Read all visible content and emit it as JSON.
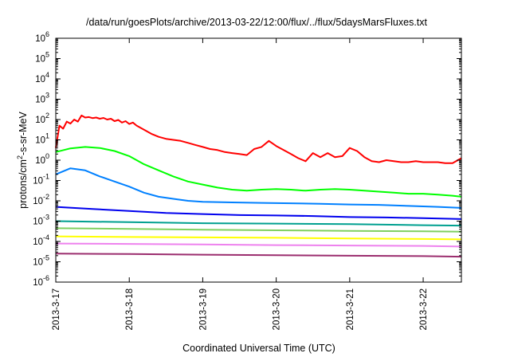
{
  "chart_data": {
    "type": "line",
    "title": "/data/run/goesPlots/archive/2013-03-22/12:00/flux/../flux/5daysMarsFluxes.txt",
    "xlabel": "Coordinated Universal Time (UTC)",
    "ylabel": "protons/cm2-s-sr-MeV",
    "ylabel_parts": {
      "pre": "protons/cm",
      "sup": "2",
      "post": "-s-sr-MeV"
    },
    "yscale": "log",
    "ylim_exponent": [
      -6,
      6
    ],
    "yticks": [
      {
        "base": "10",
        "exp": "6"
      },
      {
        "base": "10",
        "exp": "5"
      },
      {
        "base": "10",
        "exp": "4"
      },
      {
        "base": "10",
        "exp": "3"
      },
      {
        "base": "10",
        "exp": "2"
      },
      {
        "base": "10",
        "exp": "1"
      },
      {
        "base": "10",
        "exp": "0"
      },
      {
        "base": "10",
        "exp": "-1"
      },
      {
        "base": "10",
        "exp": "-2"
      },
      {
        "base": "10",
        "exp": "-3"
      },
      {
        "base": "10",
        "exp": "-4"
      },
      {
        "base": "10",
        "exp": "-5"
      },
      {
        "base": "10",
        "exp": "-6"
      }
    ],
    "xlim_days": [
      0,
      5.52
    ],
    "xticks": [
      "2013-3-17",
      "2013-3-18",
      "2013-3-19",
      "2013-3-20",
      "2013-3-21",
      "2013-3-22"
    ],
    "grid": false,
    "series": [
      {
        "color": "#ff0000",
        "points": [
          [
            0.0,
            0.6
          ],
          [
            0.05,
            1.7
          ],
          [
            0.1,
            1.55
          ],
          [
            0.15,
            1.9
          ],
          [
            0.2,
            1.8
          ],
          [
            0.25,
            2.0
          ],
          [
            0.3,
            1.9
          ],
          [
            0.35,
            2.2
          ],
          [
            0.4,
            2.1
          ],
          [
            0.45,
            2.12
          ],
          [
            0.5,
            2.07
          ],
          [
            0.55,
            2.1
          ],
          [
            0.6,
            2.04
          ],
          [
            0.65,
            2.08
          ],
          [
            0.7,
            2.0
          ],
          [
            0.75,
            2.04
          ],
          [
            0.8,
            1.92
          ],
          [
            0.85,
            1.98
          ],
          [
            0.9,
            1.85
          ],
          [
            0.95,
            1.92
          ],
          [
            1.0,
            1.78
          ],
          [
            1.05,
            1.85
          ],
          [
            1.1,
            1.7
          ],
          [
            1.2,
            1.5
          ],
          [
            1.3,
            1.3
          ],
          [
            1.4,
            1.15
          ],
          [
            1.5,
            1.05
          ],
          [
            1.6,
            1.0
          ],
          [
            1.7,
            0.95
          ],
          [
            1.8,
            0.85
          ],
          [
            1.9,
            0.75
          ],
          [
            2.0,
            0.65
          ],
          [
            2.1,
            0.55
          ],
          [
            2.2,
            0.5
          ],
          [
            2.3,
            0.4
          ],
          [
            2.4,
            0.35
          ],
          [
            2.5,
            0.3
          ],
          [
            2.6,
            0.25
          ],
          [
            2.7,
            0.55
          ],
          [
            2.8,
            0.65
          ],
          [
            2.9,
            0.95
          ],
          [
            3.0,
            0.7
          ],
          [
            3.1,
            0.5
          ],
          [
            3.2,
            0.3
          ],
          [
            3.3,
            0.1
          ],
          [
            3.4,
            -0.05
          ],
          [
            3.5,
            0.35
          ],
          [
            3.6,
            0.15
          ],
          [
            3.7,
            0.35
          ],
          [
            3.8,
            0.15
          ],
          [
            3.9,
            0.2
          ],
          [
            4.0,
            0.6
          ],
          [
            4.1,
            0.45
          ],
          [
            4.2,
            0.15
          ],
          [
            4.3,
            -0.05
          ],
          [
            4.4,
            -0.1
          ],
          [
            4.5,
            0.0
          ],
          [
            4.6,
            -0.05
          ],
          [
            4.7,
            -0.1
          ],
          [
            4.8,
            -0.1
          ],
          [
            4.9,
            -0.05
          ],
          [
            5.0,
            -0.1
          ],
          [
            5.1,
            -0.1
          ],
          [
            5.2,
            -0.1
          ],
          [
            5.3,
            -0.15
          ],
          [
            5.4,
            -0.15
          ],
          [
            5.52,
            0.1
          ]
        ]
      },
      {
        "color": "#00ff00",
        "points": [
          [
            0.0,
            0.4
          ],
          [
            0.2,
            0.58
          ],
          [
            0.4,
            0.65
          ],
          [
            0.6,
            0.6
          ],
          [
            0.8,
            0.45
          ],
          [
            1.0,
            0.2
          ],
          [
            1.2,
            -0.2
          ],
          [
            1.4,
            -0.5
          ],
          [
            1.6,
            -0.8
          ],
          [
            1.8,
            -1.05
          ],
          [
            2.0,
            -1.2
          ],
          [
            2.2,
            -1.35
          ],
          [
            2.4,
            -1.45
          ],
          [
            2.6,
            -1.5
          ],
          [
            2.8,
            -1.45
          ],
          [
            3.0,
            -1.42
          ],
          [
            3.2,
            -1.45
          ],
          [
            3.4,
            -1.5
          ],
          [
            3.6,
            -1.45
          ],
          [
            3.8,
            -1.42
          ],
          [
            4.0,
            -1.45
          ],
          [
            4.2,
            -1.5
          ],
          [
            4.4,
            -1.55
          ],
          [
            4.6,
            -1.6
          ],
          [
            4.8,
            -1.65
          ],
          [
            5.0,
            -1.65
          ],
          [
            5.2,
            -1.7
          ],
          [
            5.4,
            -1.75
          ],
          [
            5.52,
            -1.8
          ]
        ]
      },
      {
        "color": "#0080ff",
        "points": [
          [
            0.0,
            -0.7
          ],
          [
            0.2,
            -0.4
          ],
          [
            0.4,
            -0.5
          ],
          [
            0.6,
            -0.8
          ],
          [
            0.8,
            -1.05
          ],
          [
            1.0,
            -1.3
          ],
          [
            1.2,
            -1.6
          ],
          [
            1.4,
            -1.8
          ],
          [
            1.6,
            -1.9
          ],
          [
            1.8,
            -2.0
          ],
          [
            2.0,
            -2.05
          ],
          [
            2.4,
            -2.08
          ],
          [
            2.8,
            -2.1
          ],
          [
            3.2,
            -2.12
          ],
          [
            3.6,
            -2.15
          ],
          [
            4.0,
            -2.18
          ],
          [
            4.4,
            -2.2
          ],
          [
            4.8,
            -2.25
          ],
          [
            5.2,
            -2.3
          ],
          [
            5.52,
            -2.35
          ]
        ]
      },
      {
        "color": "#0000ee",
        "points": [
          [
            0.0,
            -2.3
          ],
          [
            0.5,
            -2.4
          ],
          [
            1.0,
            -2.5
          ],
          [
            1.5,
            -2.6
          ],
          [
            2.0,
            -2.65
          ],
          [
            2.5,
            -2.7
          ],
          [
            3.0,
            -2.72
          ],
          [
            3.5,
            -2.75
          ],
          [
            4.0,
            -2.8
          ],
          [
            4.5,
            -2.82
          ],
          [
            5.0,
            -2.85
          ],
          [
            5.52,
            -2.9
          ]
        ]
      },
      {
        "color": "#00a090",
        "points": [
          [
            0.0,
            -3.0
          ],
          [
            1.0,
            -3.05
          ],
          [
            2.0,
            -3.1
          ],
          [
            3.0,
            -3.12
          ],
          [
            4.0,
            -3.15
          ],
          [
            5.0,
            -3.2
          ],
          [
            5.52,
            -3.22
          ]
        ]
      },
      {
        "color": "#7fd060",
        "points": [
          [
            0.0,
            -3.35
          ],
          [
            1.0,
            -3.38
          ],
          [
            2.0,
            -3.42
          ],
          [
            3.0,
            -3.45
          ],
          [
            4.0,
            -3.48
          ],
          [
            5.0,
            -3.5
          ],
          [
            5.52,
            -3.52
          ]
        ]
      },
      {
        "color": "#ffff00",
        "points": [
          [
            0.0,
            -3.75
          ],
          [
            1.0,
            -3.78
          ],
          [
            2.0,
            -3.8
          ],
          [
            3.0,
            -3.82
          ],
          [
            4.0,
            -3.85
          ],
          [
            5.0,
            -3.88
          ],
          [
            5.52,
            -3.9
          ]
        ]
      },
      {
        "color": "#ee82ee",
        "points": [
          [
            0.0,
            -4.1
          ],
          [
            1.0,
            -4.12
          ],
          [
            2.0,
            -4.15
          ],
          [
            3.0,
            -4.18
          ],
          [
            4.0,
            -4.2
          ],
          [
            5.0,
            -4.22
          ],
          [
            5.52,
            -4.25
          ]
        ]
      },
      {
        "color": "#9b2d6e",
        "points": [
          [
            0.0,
            -4.6
          ],
          [
            1.0,
            -4.62
          ],
          [
            2.0,
            -4.65
          ],
          [
            3.0,
            -4.68
          ],
          [
            4.0,
            -4.7
          ],
          [
            5.0,
            -4.72
          ],
          [
            5.52,
            -4.75
          ]
        ]
      }
    ]
  }
}
